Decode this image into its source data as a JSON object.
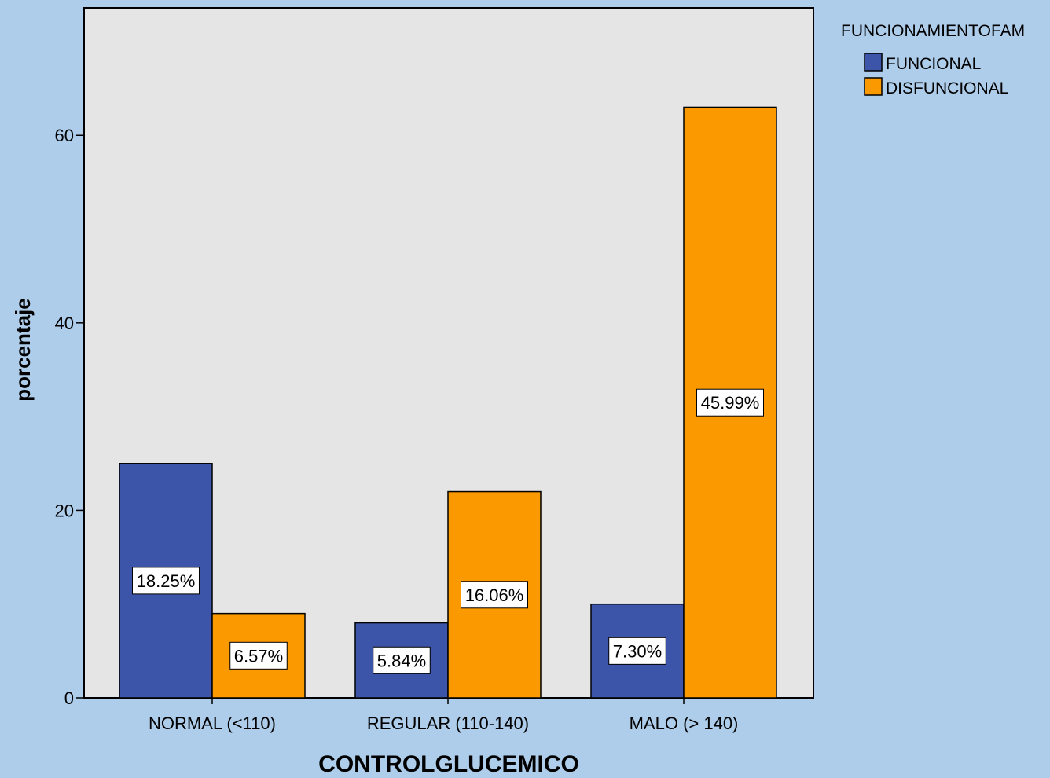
{
  "chart_data": {
    "type": "bar",
    "categories": [
      "NORMAL (<110)",
      "REGULAR (110-140)",
      "MALO (> 140)"
    ],
    "series": [
      {
        "name": "FUNCIONAL",
        "color": "#3d55a8",
        "values": [
          25,
          8,
          10
        ],
        "labels": [
          "18.25%",
          "5.84%",
          "7.30%"
        ]
      },
      {
        "name": "DISFUNCIONAL",
        "color": "#fa9900",
        "values": [
          9,
          22,
          63
        ],
        "labels": [
          "6.57%",
          "16.06%",
          "45.99%"
        ]
      }
    ],
    "title": "",
    "xlabel": "CONTROLGLUCEMICO",
    "ylabel": "porcentaje",
    "ylim": [
      0,
      73.6
    ],
    "yticks": [
      0,
      20,
      40,
      60
    ],
    "legend_title": "FUNCIONAMIENTOFAM",
    "legend_position": "top-right",
    "grid": false,
    "plot_background": "#e5e5e5",
    "page_background": "#adcdeb"
  }
}
